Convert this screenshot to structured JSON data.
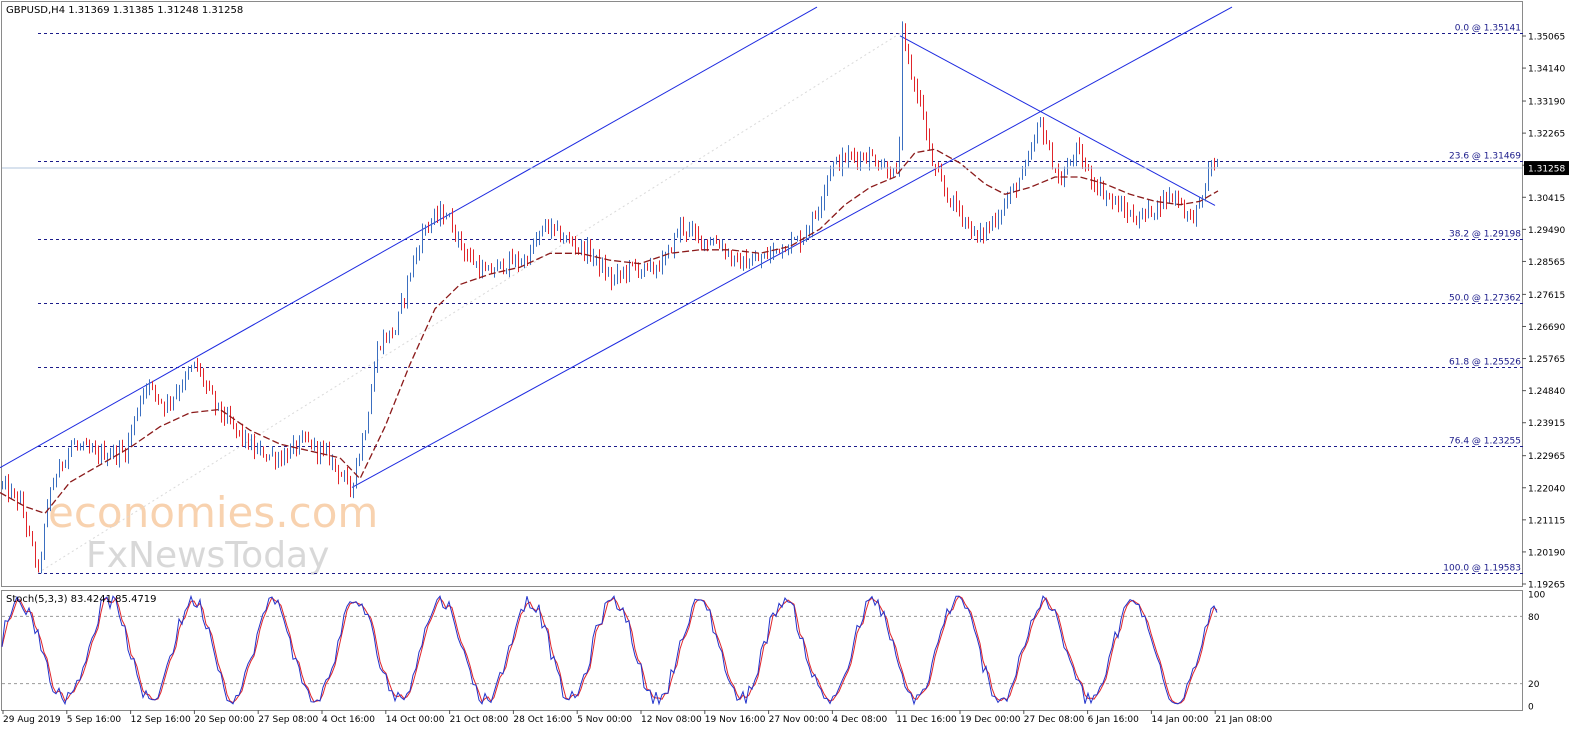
{
  "symbol_header": "GBPUSD,H4  1.31369 1.31385 1.31248 1.31258",
  "stoch_header": "Stoch(5,3,3) 83.4241 85.4719",
  "watermark": {
    "line1": "economies.com",
    "line2": "FxNewsToday"
  },
  "colors": {
    "candle_up": "#3b6fc0",
    "candle_down": "#e0262b",
    "moving_average": "#8b1a1a",
    "channel": "#1d2ae0",
    "fibo": "#1b1b8a",
    "stoch_main": "#2233cc",
    "stoch_signal": "#e0262b",
    "current_price_bg": "#000000"
  },
  "chart_data": [
    {
      "type": "candlestick",
      "title": "GBPUSD,H4",
      "ohlc_header": {
        "open": 1.31369,
        "high": 1.31385,
        "low": 1.31248,
        "close": 1.31258
      },
      "ylim": [
        1.19,
        1.357
      ],
      "y_ticks": [
        "1.35065",
        "1.34140",
        "1.33190",
        "1.32265",
        "1.31340",
        "1.30415",
        "1.29490",
        "1.28565",
        "1.27615",
        "1.26690",
        "1.25765",
        "1.24840",
        "1.23915",
        "1.22965",
        "1.22040",
        "1.21115",
        "1.20190",
        "1.19265"
      ],
      "current_price": "1.31258",
      "x_ticks": [
        "29 Aug 2019",
        "5 Sep 16:00",
        "12 Sep 16:00",
        "20 Sep 00:00",
        "27 Sep 08:00",
        "4 Oct 16:00",
        "14 Oct 00:00",
        "21 Oct 08:00",
        "28 Oct 16:00",
        "5 Nov 00:00",
        "12 Nov 08:00",
        "19 Nov 16:00",
        "27 Nov 00:00",
        "4 Dec 08:00",
        "11 Dec 16:00",
        "19 Dec 00:00",
        "27 Dec 08:00",
        "6 Jan 16:00",
        "14 Jan 00:00",
        "21 Jan 08:00"
      ],
      "price_path": [
        [
          0,
          1.2215
        ],
        [
          20,
          1.216
        ],
        [
          38,
          1.196
        ],
        [
          50,
          1.22
        ],
        [
          70,
          1.233
        ],
        [
          95,
          1.23
        ],
        [
          125,
          1.231
        ],
        [
          145,
          1.251
        ],
        [
          165,
          1.244
        ],
        [
          195,
          1.256
        ],
        [
          215,
          1.244
        ],
        [
          235,
          1.237
        ],
        [
          255,
          1.231
        ],
        [
          280,
          1.229
        ],
        [
          305,
          1.234
        ],
        [
          330,
          1.229
        ],
        [
          350,
          1.22
        ],
        [
          365,
          1.238
        ],
        [
          378,
          1.262
        ],
        [
          395,
          1.266
        ],
        [
          410,
          1.283
        ],
        [
          425,
          1.296
        ],
        [
          445,
          1.3
        ],
        [
          465,
          1.288
        ],
        [
          485,
          1.282
        ],
        [
          505,
          1.285
        ],
        [
          525,
          1.286
        ],
        [
          545,
          1.296
        ],
        [
          565,
          1.292
        ],
        [
          590,
          1.288
        ],
        [
          612,
          1.28
        ],
        [
          630,
          1.284
        ],
        [
          650,
          1.283
        ],
        [
          665,
          1.286
        ],
        [
          680,
          1.296
        ],
        [
          700,
          1.292
        ],
        [
          720,
          1.291
        ],
        [
          735,
          1.285
        ],
        [
          760,
          1.286
        ],
        [
          780,
          1.29
        ],
        [
          800,
          1.292
        ],
        [
          815,
          1.299
        ],
        [
          830,
          1.313
        ],
        [
          850,
          1.316
        ],
        [
          870,
          1.316
        ],
        [
          885,
          1.313
        ],
        [
          898,
          1.31
        ],
        [
          902,
          1.3506
        ],
        [
          910,
          1.34
        ],
        [
          922,
          1.33
        ],
        [
          930,
          1.315
        ],
        [
          945,
          1.305
        ],
        [
          960,
          1.3
        ],
        [
          977,
          1.292
        ],
        [
          995,
          1.298
        ],
        [
          1010,
          1.305
        ],
        [
          1025,
          1.312
        ],
        [
          1040,
          1.326
        ],
        [
          1050,
          1.316
        ],
        [
          1060,
          1.308
        ],
        [
          1075,
          1.318
        ],
        [
          1090,
          1.31
        ],
        [
          1105,
          1.305
        ],
        [
          1120,
          1.301
        ],
        [
          1135,
          1.298
        ],
        [
          1150,
          1.3
        ],
        [
          1165,
          1.304
        ],
        [
          1175,
          1.305
        ],
        [
          1190,
          1.298
        ],
        [
          1200,
          1.302
        ],
        [
          1212,
          1.315
        ],
        [
          1218,
          1.3126
        ]
      ],
      "ma_path": [
        [
          0,
          1.219
        ],
        [
          25,
          1.215
        ],
        [
          45,
          1.213
        ],
        [
          70,
          1.222
        ],
        [
          100,
          1.227
        ],
        [
          130,
          1.232
        ],
        [
          160,
          1.238
        ],
        [
          190,
          1.242
        ],
        [
          220,
          1.243
        ],
        [
          250,
          1.237
        ],
        [
          280,
          1.233
        ],
        [
          310,
          1.231
        ],
        [
          340,
          1.229
        ],
        [
          360,
          1.223
        ],
        [
          385,
          1.238
        ],
        [
          410,
          1.256
        ],
        [
          435,
          1.272
        ],
        [
          460,
          1.279
        ],
        [
          490,
          1.282
        ],
        [
          520,
          1.284
        ],
        [
          550,
          1.288
        ],
        [
          580,
          1.288
        ],
        [
          610,
          1.286
        ],
        [
          640,
          1.285
        ],
        [
          670,
          1.288
        ],
        [
          700,
          1.289
        ],
        [
          730,
          1.289
        ],
        [
          760,
          1.288
        ],
        [
          790,
          1.29
        ],
        [
          820,
          1.295
        ],
        [
          845,
          1.302
        ],
        [
          870,
          1.307
        ],
        [
          895,
          1.31
        ],
        [
          915,
          1.317
        ],
        [
          935,
          1.318
        ],
        [
          960,
          1.314
        ],
        [
          985,
          1.308
        ],
        [
          1005,
          1.305
        ],
        [
          1030,
          1.307
        ],
        [
          1055,
          1.31
        ],
        [
          1080,
          1.31
        ],
        [
          1105,
          1.308
        ],
        [
          1130,
          1.305
        ],
        [
          1155,
          1.303
        ],
        [
          1180,
          1.302
        ],
        [
          1200,
          1.303
        ],
        [
          1218,
          1.306
        ]
      ],
      "channel_lines": [
        [
          [
            0,
            1.2262
          ],
          [
            817,
            1.359
          ]
        ],
        [
          [
            352,
            1.2205
          ],
          [
            1232,
            1.359
          ]
        ],
        [
          [
            900,
            1.3507
          ],
          [
            1215,
            1.3018
          ]
        ]
      ],
      "fibonacci": {
        "x_start": 38,
        "x_end": 1525,
        "levels": [
          {
            "label": "0.0 @ 1.35141",
            "price": 1.35141
          },
          {
            "label": "23.6 @ 1.31469",
            "price": 1.31469
          },
          {
            "label": "38.2 @ 1.29198",
            "price": 1.29198
          },
          {
            "label": "50.0 @ 1.27362",
            "price": 1.27362
          },
          {
            "label": "61.8 @ 1.25526",
            "price": 1.25526
          },
          {
            "label": "76.4 @ 1.23255",
            "price": 1.23255
          },
          {
            "label": "100.0 @ 1.19583",
            "price": 1.19583
          }
        ]
      }
    },
    {
      "type": "line",
      "title": "Stoch(5,3,3)",
      "ylim": [
        0,
        100
      ],
      "y_ticks": [
        "100",
        "80",
        "20",
        "0"
      ],
      "levels": [
        80,
        20
      ],
      "main_value": 83.4241,
      "signal_value": 85.4719
    }
  ]
}
